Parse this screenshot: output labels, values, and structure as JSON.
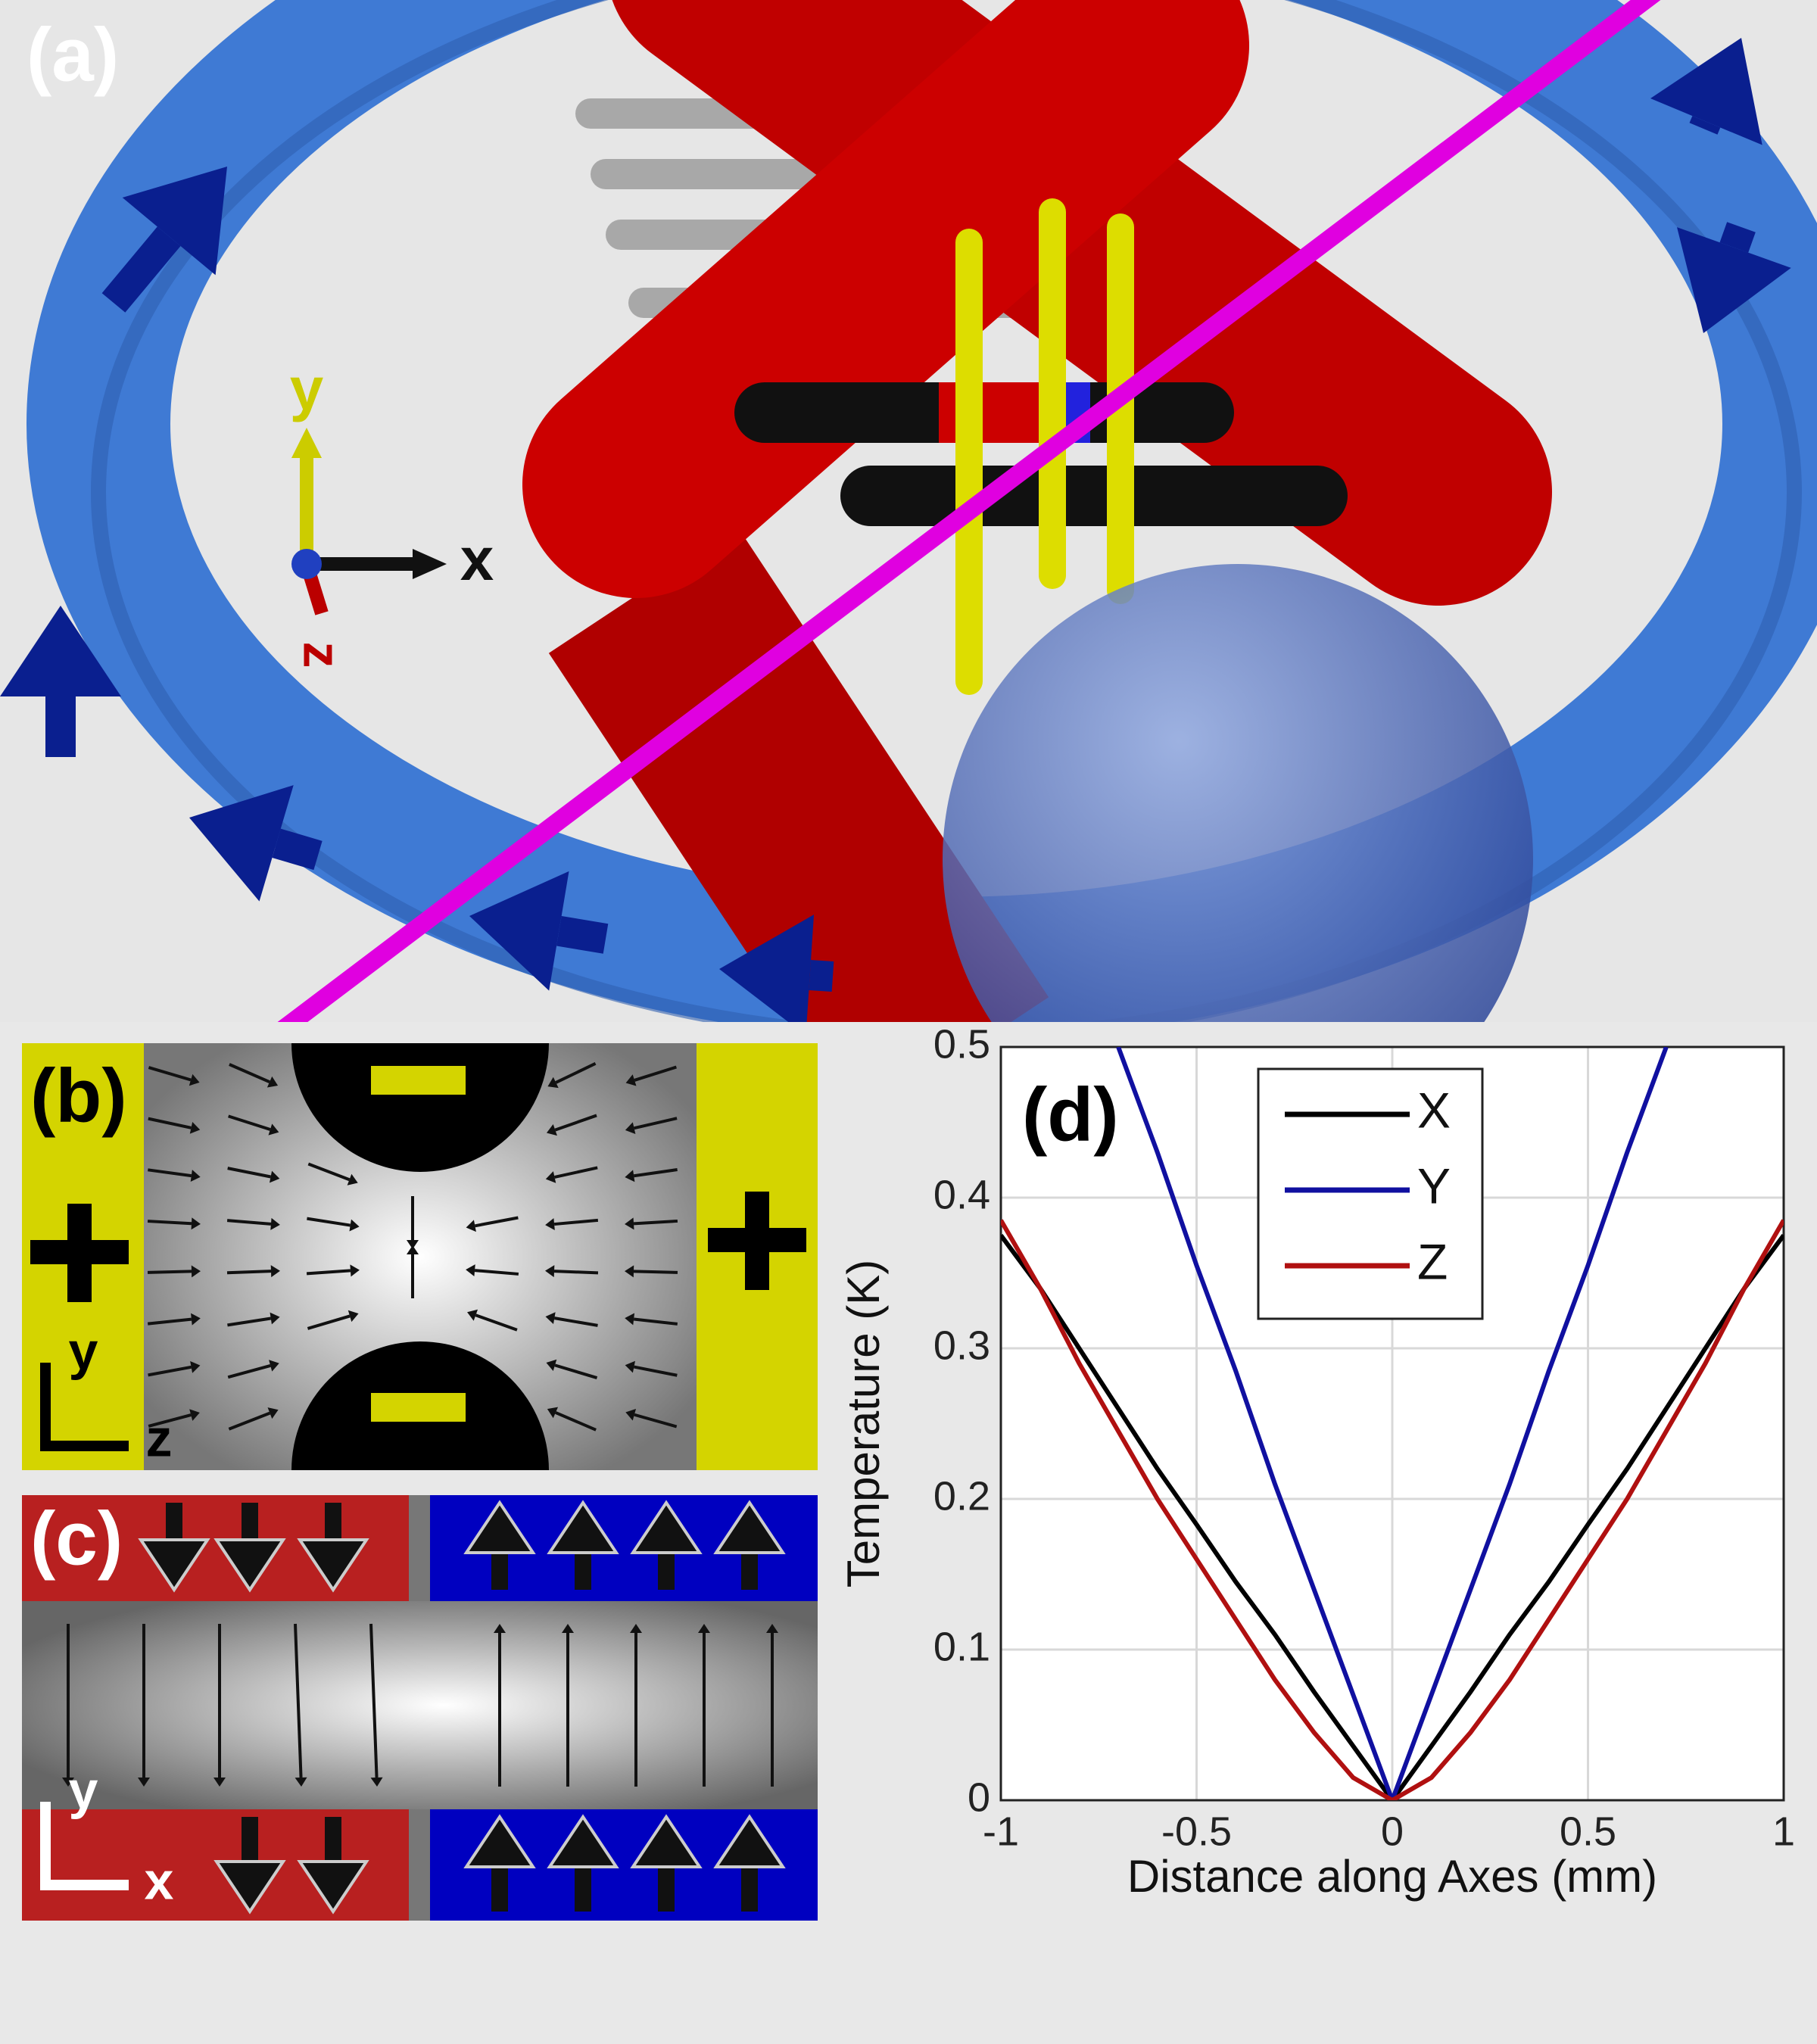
{
  "panels": {
    "a": {
      "label": "(a)",
      "axes": {
        "y": "y",
        "x": "x",
        "z": "z"
      }
    },
    "b": {
      "label": "(b)",
      "axes": {
        "y": "y",
        "x": "z"
      }
    },
    "c": {
      "label": "(c)",
      "axes": {
        "y": "y",
        "x": "x"
      }
    }
  },
  "chart_data": {
    "type": "line",
    "label": "(d)",
    "xlabel": "Distance along Axes (mm)",
    "ylabel": "Temperature (K)",
    "x": [
      -1,
      -0.9,
      -0.8,
      -0.7,
      -0.6,
      -0.5,
      -0.4,
      -0.3,
      -0.2,
      -0.1,
      0,
      0.1,
      0.2,
      0.3,
      0.4,
      0.5,
      0.6,
      0.7,
      0.8,
      0.9,
      1
    ],
    "series": [
      {
        "name": "X",
        "color": "#000000",
        "values": [
          0.375,
          0.34,
          0.3,
          0.26,
          0.22,
          0.183,
          0.145,
          0.11,
          0.072,
          0.036,
          0,
          0.036,
          0.072,
          0.11,
          0.145,
          0.183,
          0.22,
          0.26,
          0.3,
          0.34,
          0.375
        ]
      },
      {
        "name": "Y",
        "color": "#1010a0",
        "values": [
          null,
          null,
          null,
          0.5,
          0.43,
          0.355,
          0.285,
          0.21,
          0.14,
          0.07,
          0,
          0.07,
          0.14,
          0.21,
          0.285,
          0.355,
          0.43,
          0.5,
          null,
          null,
          null
        ]
      },
      {
        "name": "Z",
        "color": "#b01010",
        "values": [
          0.385,
          0.34,
          0.29,
          0.245,
          0.2,
          0.16,
          0.12,
          0.08,
          0.045,
          0.015,
          0,
          0.015,
          0.045,
          0.08,
          0.12,
          0.16,
          0.2,
          0.245,
          0.29,
          0.34,
          0.385
        ]
      }
    ],
    "xlim": [
      -1,
      1
    ],
    "ylim": [
      0,
      0.5
    ],
    "xticks": [
      -1,
      -0.5,
      0,
      0.5,
      1
    ],
    "yticks": [
      0,
      0.1,
      0.2,
      0.3,
      0.4,
      0.5
    ],
    "grid": true,
    "legend": "top-right"
  }
}
